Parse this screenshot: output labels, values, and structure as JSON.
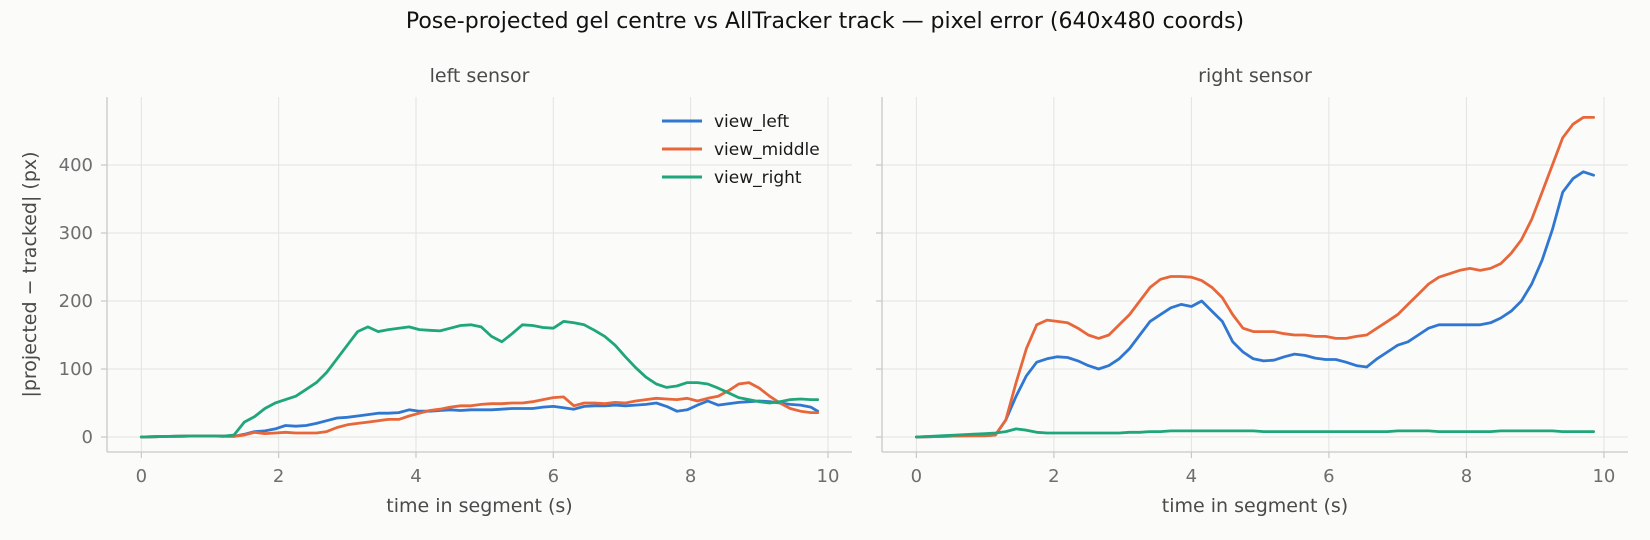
{
  "title": "Pose-projected gel centre vs AllTracker track — pixel error (640x480 coords)",
  "colors": {
    "view_left": "#2f77d0",
    "view_middle": "#e8673a",
    "view_right": "#1fa67a",
    "grid": "#e3e3e3",
    "spine": "#c8c8c8"
  },
  "chart_data": [
    {
      "type": "line",
      "title": "left sensor",
      "xlabel": "time in segment (s)",
      "ylabel": "|projected − tracked| (px)",
      "xlim": [
        -0.5,
        10.35
      ],
      "ylim": [
        -22,
        500
      ],
      "xticks": [
        0,
        2,
        4,
        6,
        8,
        10
      ],
      "yticks": [
        0,
        100,
        200,
        300,
        400
      ],
      "grid": true,
      "legend": "top-right",
      "x": [
        0,
        0.2,
        0.4,
        0.6,
        0.8,
        1.0,
        1.2,
        1.35,
        1.5,
        1.65,
        1.8,
        1.95,
        2.1,
        2.25,
        2.4,
        2.55,
        2.7,
        2.85,
        3.0,
        3.15,
        3.3,
        3.45,
        3.6,
        3.75,
        3.9,
        4.05,
        4.2,
        4.35,
        4.5,
        4.65,
        4.8,
        4.95,
        5.1,
        5.25,
        5.4,
        5.55,
        5.7,
        5.85,
        6.0,
        6.15,
        6.3,
        6.45,
        6.6,
        6.75,
        6.9,
        7.05,
        7.2,
        7.35,
        7.5,
        7.65,
        7.8,
        7.95,
        8.1,
        8.25,
        8.4,
        8.55,
        8.7,
        8.85,
        9.0,
        9.15,
        9.3,
        9.45,
        9.6,
        9.75,
        9.85
      ],
      "series": [
        {
          "name": "view_left",
          "colorKey": "view_left",
          "values": [
            0,
            0.5,
            1,
            1.2,
            1.5,
            1.5,
            1.2,
            1,
            4,
            8,
            9,
            12,
            17,
            16,
            17,
            20,
            24,
            28,
            29,
            31,
            33,
            35,
            35,
            36,
            40,
            38,
            38,
            39,
            40,
            39,
            40,
            40,
            40,
            41,
            42,
            42,
            42,
            44,
            45,
            43,
            41,
            45,
            46,
            46,
            47,
            46,
            47,
            48,
            50,
            45,
            38,
            40,
            47,
            53,
            47,
            49,
            51,
            52,
            53,
            52,
            50,
            48,
            47,
            44,
            38
          ]
        },
        {
          "name": "view_middle",
          "colorKey": "view_middle",
          "values": [
            0,
            0.5,
            1,
            1.2,
            1.5,
            1.5,
            1.2,
            1,
            3,
            7,
            5,
            6,
            7,
            6,
            6,
            6,
            8,
            14,
            18,
            20,
            22,
            24,
            26,
            26,
            31,
            35,
            39,
            41,
            44,
            46,
            46,
            48,
            49,
            49,
            50,
            50,
            52,
            55,
            58,
            59,
            46,
            50,
            50,
            49,
            51,
            50,
            53,
            55,
            57,
            56,
            55,
            57,
            53,
            57,
            60,
            68,
            78,
            80,
            72,
            60,
            50,
            42,
            38,
            36,
            36
          ]
        },
        {
          "name": "view_right",
          "colorKey": "view_right",
          "values": [
            0,
            0.5,
            1,
            1.2,
            1.5,
            1.5,
            1.2,
            3,
            22,
            30,
            42,
            50,
            55,
            60,
            70,
            80,
            95,
            115,
            135,
            155,
            162,
            155,
            158,
            160,
            162,
            158,
            157,
            156,
            160,
            164,
            165,
            162,
            148,
            140,
            152,
            165,
            164,
            161,
            160,
            170,
            168,
            165,
            157,
            148,
            135,
            118,
            102,
            88,
            78,
            73,
            75,
            80,
            80,
            78,
            72,
            65,
            58,
            55,
            52,
            50,
            52,
            55,
            56,
            55,
            55
          ]
        }
      ]
    },
    {
      "type": "line",
      "title": "right sensor",
      "xlabel": "time in segment (s)",
      "ylabel": "",
      "xlim": [
        -0.5,
        10.35
      ],
      "ylim": [
        -22,
        500
      ],
      "xticks": [
        0,
        2,
        4,
        6,
        8,
        10
      ],
      "yticks": [
        0,
        100,
        200,
        300,
        400
      ],
      "grid": true,
      "x": [
        0,
        0.2,
        0.4,
        0.6,
        0.8,
        1.0,
        1.15,
        1.3,
        1.45,
        1.6,
        1.75,
        1.9,
        2.05,
        2.2,
        2.35,
        2.5,
        2.65,
        2.8,
        2.95,
        3.1,
        3.25,
        3.4,
        3.55,
        3.7,
        3.85,
        4.0,
        4.15,
        4.3,
        4.45,
        4.6,
        4.75,
        4.9,
        5.05,
        5.2,
        5.35,
        5.5,
        5.65,
        5.8,
        5.95,
        6.1,
        6.25,
        6.4,
        6.55,
        6.7,
        6.85,
        7.0,
        7.15,
        7.3,
        7.45,
        7.6,
        7.75,
        7.9,
        8.05,
        8.2,
        8.35,
        8.5,
        8.65,
        8.8,
        8.95,
        9.1,
        9.25,
        9.4,
        9.55,
        9.7,
        9.85
      ],
      "series": [
        {
          "name": "view_left",
          "colorKey": "view_left",
          "values": [
            0,
            0.5,
            1,
            1.5,
            2,
            2,
            3,
            25,
            60,
            90,
            110,
            115,
            118,
            117,
            112,
            105,
            100,
            105,
            115,
            130,
            150,
            170,
            180,
            190,
            195,
            192,
            200,
            185,
            170,
            140,
            125,
            115,
            112,
            113,
            118,
            122,
            120,
            116,
            114,
            114,
            110,
            105,
            103,
            115,
            125,
            135,
            140,
            150,
            160,
            165,
            165,
            165,
            165,
            165,
            168,
            175,
            185,
            200,
            225,
            260,
            305,
            360,
            380,
            390,
            385
          ]
        },
        {
          "name": "view_middle",
          "colorKey": "view_middle",
          "values": [
            0,
            0.5,
            1,
            1.5,
            2,
            2,
            3,
            25,
            80,
            130,
            165,
            172,
            170,
            168,
            160,
            150,
            145,
            150,
            165,
            180,
            200,
            220,
            232,
            236,
            236,
            235,
            230,
            220,
            205,
            180,
            160,
            155,
            155,
            155,
            152,
            150,
            150,
            148,
            148,
            145,
            145,
            148,
            150,
            160,
            170,
            180,
            195,
            210,
            225,
            235,
            240,
            245,
            248,
            245,
            248,
            255,
            270,
            290,
            320,
            360,
            400,
            440,
            460,
            470,
            470
          ]
        },
        {
          "name": "view_right",
          "colorKey": "view_right",
          "values": [
            0,
            1,
            2,
            3,
            4,
            5,
            6,
            8,
            12,
            10,
            7,
            6,
            6,
            6,
            6,
            6,
            6,
            6,
            6,
            7,
            7,
            8,
            8,
            9,
            9,
            9,
            9,
            9,
            9,
            9,
            9,
            9,
            8,
            8,
            8,
            8,
            8,
            8,
            8,
            8,
            8,
            8,
            8,
            8,
            8,
            9,
            9,
            9,
            9,
            8,
            8,
            8,
            8,
            8,
            8,
            9,
            9,
            9,
            9,
            9,
            9,
            8,
            8,
            8,
            8
          ]
        }
      ]
    }
  ]
}
